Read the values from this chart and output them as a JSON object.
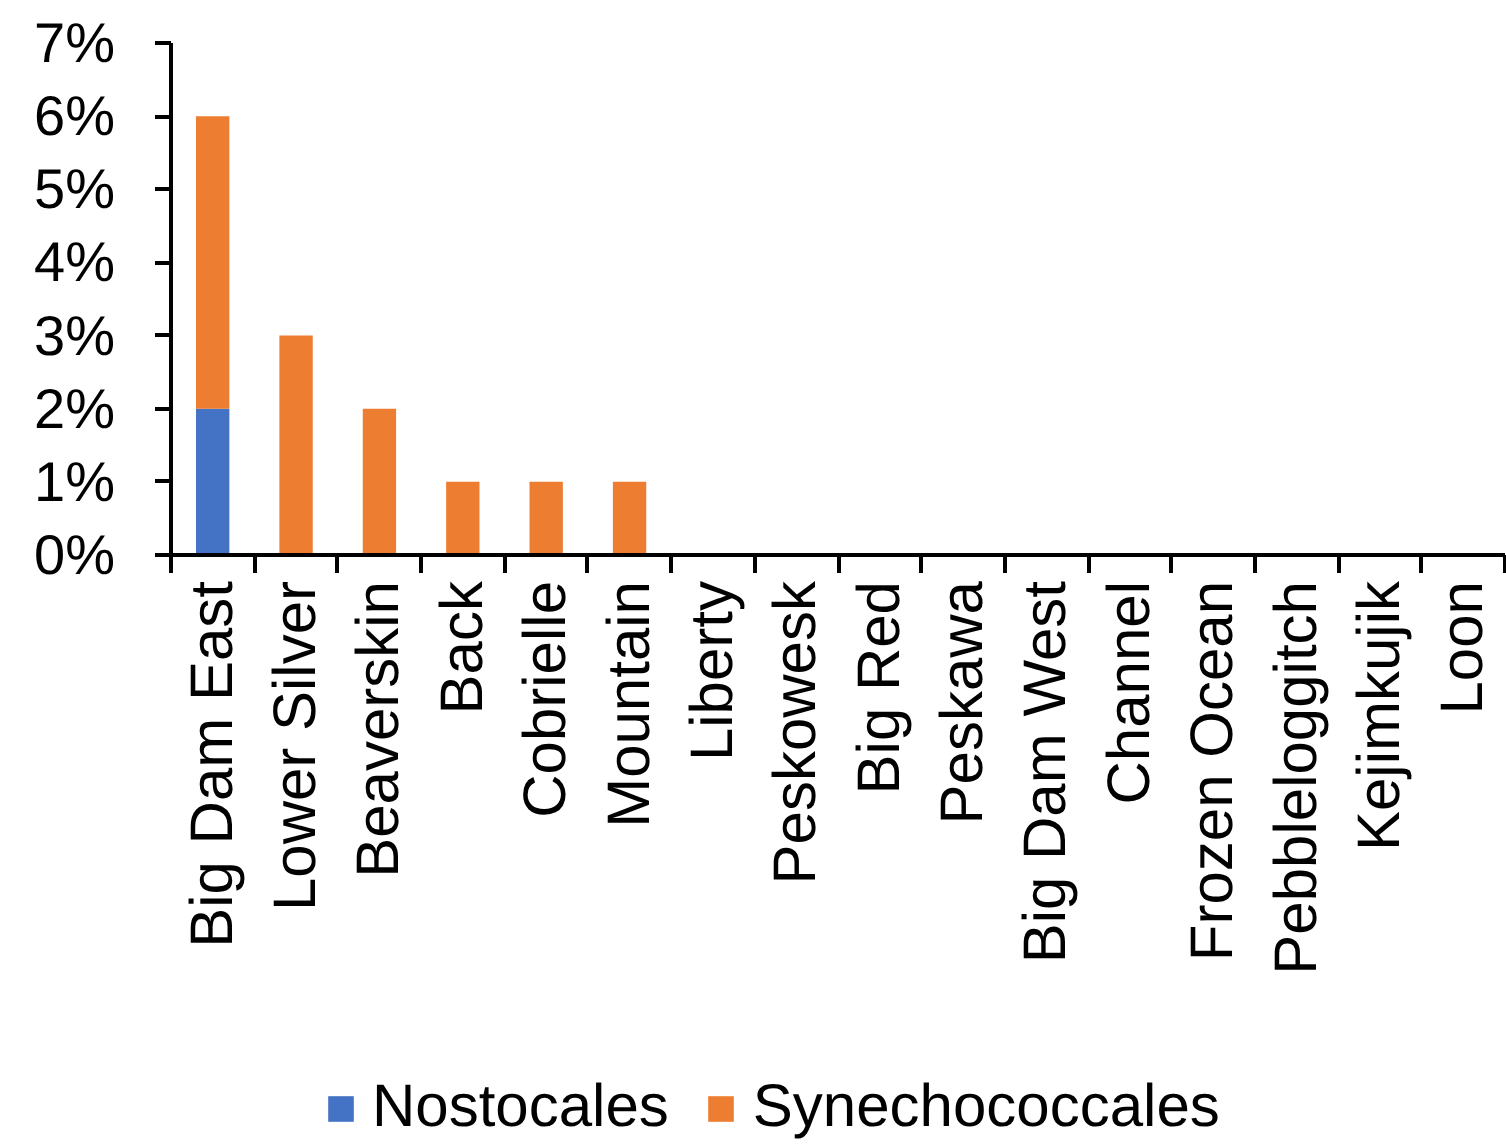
{
  "chart_data": {
    "type": "bar",
    "stacked": true,
    "categories": [
      "Big Dam East",
      "Lower Silver",
      "Beaverskin",
      "Back",
      "Cobrielle",
      "Mountain",
      "Liberty",
      "Peskowesk",
      "Big Red",
      "Peskawa",
      "Big Dam West",
      "Channel",
      "Frozen Ocean",
      "Pebbleloggitch",
      "Kejimkujik",
      "Loon"
    ],
    "series": [
      {
        "name": "Nostocales",
        "color": "#4472c4",
        "values": [
          2,
          0,
          0,
          0,
          0,
          0,
          0,
          0,
          0,
          0,
          0,
          0,
          0,
          0,
          0,
          0
        ]
      },
      {
        "name": "Synechococcales",
        "color": "#ed7d31",
        "values": [
          4,
          3,
          2,
          1,
          1,
          1,
          0,
          0,
          0,
          0,
          0,
          0,
          0,
          0,
          0,
          0
        ]
      }
    ],
    "ylim": [
      0,
      7
    ],
    "yticks": [
      {
        "value": 0,
        "label": "0%"
      },
      {
        "value": 1,
        "label": "1%"
      },
      {
        "value": 2,
        "label": "2%"
      },
      {
        "value": 3,
        "label": "3%"
      },
      {
        "value": 4,
        "label": "4%"
      },
      {
        "value": 5,
        "label": "5%"
      },
      {
        "value": 6,
        "label": "6%"
      },
      {
        "value": 7,
        "label": "7%"
      }
    ],
    "legend": "bottom"
  }
}
